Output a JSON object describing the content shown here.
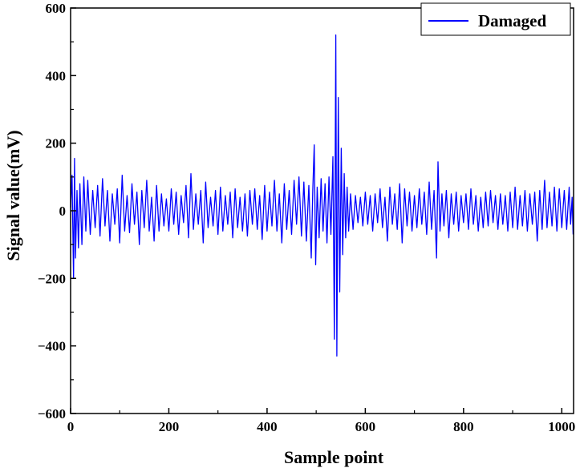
{
  "chart_data": {
    "type": "line",
    "xlabel": "Sample point",
    "ylabel": "Signal value(mV)",
    "xlim": [
      0,
      1024
    ],
    "ylim": [
      -600,
      600
    ],
    "xticks": [
      0,
      200,
      400,
      600,
      800,
      1000
    ],
    "yticks": [
      -600,
      -400,
      -200,
      0,
      200,
      400,
      600
    ],
    "grid": false,
    "legend_position": "top-right",
    "series": [
      {
        "name": "Damaged",
        "color": "#0000ff",
        "points": [
          [
            0,
            10
          ],
          [
            3,
            105
          ],
          [
            6,
            -200
          ],
          [
            8,
            155
          ],
          [
            10,
            -140
          ],
          [
            13,
            60
          ],
          [
            16,
            -110
          ],
          [
            19,
            80
          ],
          [
            23,
            -100
          ],
          [
            27,
            100
          ],
          [
            31,
            -60
          ],
          [
            35,
            90
          ],
          [
            40,
            -70
          ],
          [
            45,
            60
          ],
          [
            50,
            -50
          ],
          [
            55,
            75
          ],
          [
            60,
            -75
          ],
          [
            65,
            95
          ],
          [
            70,
            -45
          ],
          [
            75,
            60
          ],
          [
            80,
            -90
          ],
          [
            85,
            50
          ],
          [
            90,
            -40
          ],
          [
            95,
            65
          ],
          [
            100,
            -95
          ],
          [
            105,
            105
          ],
          [
            110,
            -60
          ],
          [
            115,
            45
          ],
          [
            120,
            -65
          ],
          [
            125,
            80
          ],
          [
            130,
            -40
          ],
          [
            135,
            55
          ],
          [
            140,
            -100
          ],
          [
            145,
            60
          ],
          [
            150,
            -50
          ],
          [
            155,
            90
          ],
          [
            160,
            -60
          ],
          [
            165,
            40
          ],
          [
            170,
            -90
          ],
          [
            175,
            75
          ],
          [
            180,
            -60
          ],
          [
            185,
            50
          ],
          [
            190,
            -45
          ],
          [
            195,
            35
          ],
          [
            200,
            -60
          ],
          [
            205,
            65
          ],
          [
            210,
            -40
          ],
          [
            215,
            55
          ],
          [
            220,
            -70
          ],
          [
            225,
            45
          ],
          [
            230,
            -35
          ],
          [
            235,
            75
          ],
          [
            240,
            -80
          ],
          [
            245,
            110
          ],
          [
            250,
            -55
          ],
          [
            255,
            50
          ],
          [
            260,
            -40
          ],
          [
            265,
            60
          ],
          [
            270,
            -95
          ],
          [
            275,
            85
          ],
          [
            280,
            -50
          ],
          [
            285,
            40
          ],
          [
            290,
            -45
          ],
          [
            295,
            60
          ],
          [
            300,
            -70
          ],
          [
            305,
            70
          ],
          [
            310,
            -60
          ],
          [
            315,
            45
          ],
          [
            320,
            -40
          ],
          [
            325,
            55
          ],
          [
            330,
            -80
          ],
          [
            335,
            65
          ],
          [
            340,
            -50
          ],
          [
            345,
            40
          ],
          [
            350,
            -60
          ],
          [
            355,
            50
          ],
          [
            360,
            -75
          ],
          [
            365,
            60
          ],
          [
            370,
            -40
          ],
          [
            375,
            65
          ],
          [
            380,
            -55
          ],
          [
            385,
            45
          ],
          [
            390,
            -85
          ],
          [
            395,
            75
          ],
          [
            400,
            -60
          ],
          [
            405,
            55
          ],
          [
            410,
            -45
          ],
          [
            415,
            90
          ],
          [
            420,
            -60
          ],
          [
            425,
            50
          ],
          [
            430,
            -95
          ],
          [
            435,
            80
          ],
          [
            440,
            -55
          ],
          [
            445,
            60
          ],
          [
            450,
            -70
          ],
          [
            455,
            90
          ],
          [
            460,
            -40
          ],
          [
            465,
            100
          ],
          [
            470,
            -75
          ],
          [
            475,
            85
          ],
          [
            480,
            -90
          ],
          [
            485,
            75
          ],
          [
            490,
            -140
          ],
          [
            493,
            60
          ],
          [
            496,
            195
          ],
          [
            499,
            -160
          ],
          [
            502,
            70
          ],
          [
            506,
            -80
          ],
          [
            510,
            95
          ],
          [
            514,
            -60
          ],
          [
            518,
            80
          ],
          [
            522,
            -95
          ],
          [
            526,
            100
          ],
          [
            530,
            -70
          ],
          [
            534,
            160
          ],
          [
            537,
            -380
          ],
          [
            540,
            520
          ],
          [
            542,
            -430
          ],
          [
            545,
            335
          ],
          [
            548,
            -240
          ],
          [
            551,
            185
          ],
          [
            554,
            -130
          ],
          [
            557,
            110
          ],
          [
            560,
            -80
          ],
          [
            563,
            70
          ],
          [
            566,
            -60
          ],
          [
            570,
            50
          ],
          [
            575,
            -55
          ],
          [
            580,
            45
          ],
          [
            585,
            -35
          ],
          [
            590,
            40
          ],
          [
            595,
            -45
          ],
          [
            600,
            55
          ],
          [
            605,
            -40
          ],
          [
            610,
            45
          ],
          [
            615,
            -60
          ],
          [
            620,
            50
          ],
          [
            625,
            -35
          ],
          [
            630,
            65
          ],
          [
            635,
            -50
          ],
          [
            640,
            40
          ],
          [
            645,
            -90
          ],
          [
            650,
            70
          ],
          [
            655,
            -40
          ],
          [
            660,
            50
          ],
          [
            665,
            -55
          ],
          [
            670,
            80
          ],
          [
            675,
            -95
          ],
          [
            680,
            65
          ],
          [
            685,
            -45
          ],
          [
            690,
            55
          ],
          [
            695,
            -60
          ],
          [
            700,
            45
          ],
          [
            705,
            -50
          ],
          [
            710,
            65
          ],
          [
            715,
            -40
          ],
          [
            720,
            55
          ],
          [
            725,
            -70
          ],
          [
            730,
            85
          ],
          [
            735,
            -55
          ],
          [
            740,
            60
          ],
          [
            745,
            -140
          ],
          [
            748,
            145
          ],
          [
            752,
            -60
          ],
          [
            756,
            50
          ],
          [
            760,
            -45
          ],
          [
            765,
            60
          ],
          [
            770,
            -80
          ],
          [
            775,
            50
          ],
          [
            780,
            -40
          ],
          [
            785,
            55
          ],
          [
            790,
            -60
          ],
          [
            795,
            45
          ],
          [
            800,
            -35
          ],
          [
            805,
            50
          ],
          [
            810,
            -55
          ],
          [
            815,
            65
          ],
          [
            820,
            -40
          ],
          [
            825,
            45
          ],
          [
            830,
            -60
          ],
          [
            835,
            40
          ],
          [
            840,
            -50
          ],
          [
            845,
            55
          ],
          [
            850,
            -45
          ],
          [
            855,
            60
          ],
          [
            860,
            -35
          ],
          [
            865,
            45
          ],
          [
            870,
            -55
          ],
          [
            875,
            50
          ],
          [
            880,
            -40
          ],
          [
            885,
            45
          ],
          [
            890,
            -60
          ],
          [
            895,
            55
          ],
          [
            900,
            -50
          ],
          [
            905,
            70
          ],
          [
            910,
            -55
          ],
          [
            915,
            45
          ],
          [
            920,
            -45
          ],
          [
            925,
            60
          ],
          [
            930,
            -60
          ],
          [
            935,
            50
          ],
          [
            940,
            -40
          ],
          [
            945,
            55
          ],
          [
            950,
            -90
          ],
          [
            955,
            60
          ],
          [
            960,
            -55
          ],
          [
            965,
            90
          ],
          [
            970,
            -50
          ],
          [
            975,
            55
          ],
          [
            980,
            -45
          ],
          [
            985,
            70
          ],
          [
            990,
            -60
          ],
          [
            995,
            65
          ],
          [
            1000,
            -50
          ],
          [
            1005,
            60
          ],
          [
            1010,
            -55
          ],
          [
            1015,
            70
          ],
          [
            1018,
            -40
          ],
          [
            1021,
            40
          ],
          [
            1023,
            -70
          ]
        ]
      }
    ]
  }
}
